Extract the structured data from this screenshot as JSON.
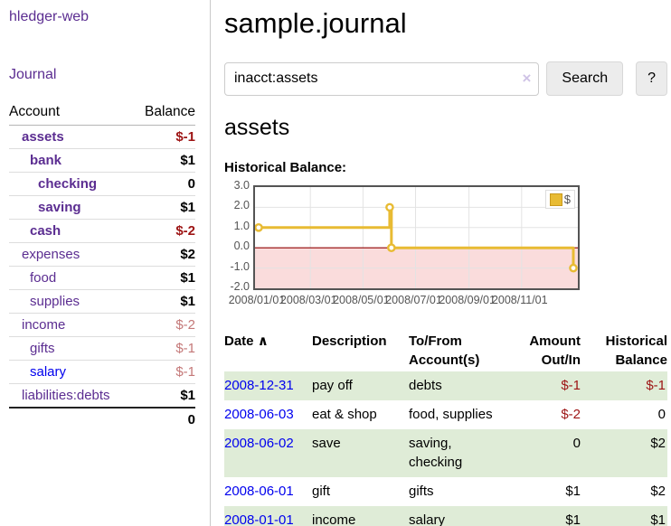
{
  "brand": "hledger-web",
  "nav": {
    "journal": "Journal"
  },
  "page": {
    "title": "sample.journal",
    "account_heading": "assets",
    "chart_heading": "Historical Balance:"
  },
  "search": {
    "value": "inacct:assets",
    "clear_icon": "×",
    "search_button": "Search",
    "help_button": "?"
  },
  "colors": {
    "link_purple": "#5b2d91",
    "link_blue": "#0000ee",
    "negative_strong": "#9d1414",
    "negative_muted": "#c47878",
    "row_stripe_green": "#dfecd7",
    "chart_line_gold": "#e8bb33",
    "chart_negative_fill": "#fadcdc",
    "chart_zero_line": "#900000",
    "chart_grid": "#e3e3e3",
    "chart_border": "#545454"
  },
  "sidebar_accounts": {
    "header": {
      "account": "Account",
      "balance": "Balance"
    },
    "rows": [
      {
        "name": "assets",
        "depth": 1,
        "balance": "$-1",
        "emphasis": true,
        "negative": "strong"
      },
      {
        "name": "bank",
        "depth": 2,
        "balance": "$1",
        "emphasis": true
      },
      {
        "name": "checking",
        "depth": 3,
        "balance": "0",
        "emphasis": true
      },
      {
        "name": "saving",
        "depth": 3,
        "balance": "$1",
        "emphasis": true
      },
      {
        "name": "cash",
        "depth": 2,
        "balance": "$-2",
        "emphasis": true,
        "negative": "strong"
      },
      {
        "name": "expenses",
        "depth": 1,
        "balance": "$2"
      },
      {
        "name": "food",
        "depth": 2,
        "balance": "$1"
      },
      {
        "name": "supplies",
        "depth": 2,
        "balance": "$1"
      },
      {
        "name": "income",
        "depth": 1,
        "balance": "$-2",
        "negative": "muted"
      },
      {
        "name": "gifts",
        "depth": 2,
        "balance": "$-1",
        "negative": "muted"
      },
      {
        "name": "salary",
        "depth": 2,
        "balance": "$-1",
        "negative": "muted",
        "link_color": "blue"
      },
      {
        "name": "liabilities:debts",
        "depth": 1,
        "balance": "$1"
      }
    ],
    "total": "0"
  },
  "register": {
    "headers": {
      "date": "Date",
      "sort_icon": "∧",
      "description": "Description",
      "tofrom": [
        "To/From",
        "Account(s)"
      ],
      "amount": [
        "Amount",
        "Out/In"
      ],
      "balance": [
        "Historical",
        "Balance"
      ]
    },
    "rows": [
      {
        "date": "2008-12-31",
        "description": "pay off",
        "accounts": "debts",
        "amount": "$-1",
        "balance": "$-1"
      },
      {
        "date": "2008-06-03",
        "description": "eat & shop",
        "accounts": "food, supplies",
        "amount": "$-2",
        "balance": "0"
      },
      {
        "date": "2008-06-02",
        "description": "save",
        "accounts": "saving, checking",
        "amount": "0",
        "balance": "$2"
      },
      {
        "date": "2008-06-01",
        "description": "gift",
        "accounts": "gifts",
        "amount": "$1",
        "balance": "$2"
      },
      {
        "date": "2008-01-01",
        "description": "income",
        "accounts": "salary",
        "amount": "$1",
        "balance": "$1"
      }
    ]
  },
  "chart_data": {
    "type": "line",
    "title": "Historical Balance",
    "step": true,
    "series": [
      {
        "name": "$",
        "points": [
          [
            "2008-01-01",
            1
          ],
          [
            "2008-06-01",
            2
          ],
          [
            "2008-06-03",
            0
          ],
          [
            "2008-12-31",
            -1
          ]
        ]
      }
    ],
    "ylim": [
      -2,
      3
    ],
    "y_ticks": [
      "3.0",
      "2.0",
      "1.0",
      "0.0",
      "-1.0",
      "-2.0"
    ],
    "x_ticks": [
      "2008/01/01",
      "2008/03/01",
      "2008/05/01",
      "2008/07/01",
      "2008/09/01",
      "2008/11/01"
    ],
    "x_start": "2008-01-01",
    "x_range_days": 365,
    "grid": true,
    "legend_position": "top-right",
    "negative_region_shaded": true
  }
}
